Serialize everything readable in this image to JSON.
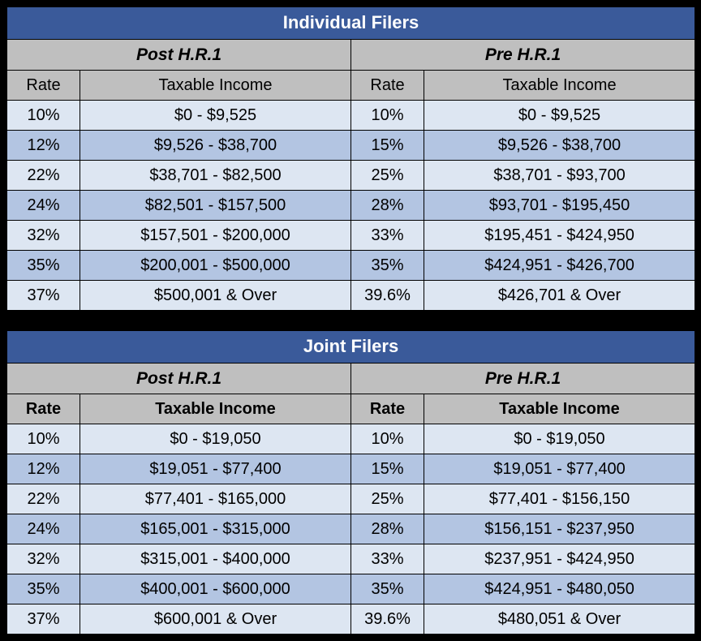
{
  "colors": {
    "header_bg": "#3a5a9a",
    "header_text": "#ffffff",
    "section_bg": "#bfbfbf",
    "row_light": "#dde6f2",
    "row_dark": "#b3c5e2",
    "border": "#000000",
    "page_bg": "#000000"
  },
  "typography": {
    "font_family": "Arial, Helvetica, sans-serif",
    "title_fontsize": 22,
    "body_fontsize": 20
  },
  "tables": [
    {
      "title": "Individual Filers",
      "class_extra": "",
      "sections": [
        {
          "label": "Post H.R.1",
          "col_rate": "Rate",
          "col_income": "Taxable Income"
        },
        {
          "label": "Pre H.R.1",
          "col_rate": "Rate",
          "col_income": "Taxable Income"
        }
      ],
      "rows": [
        {
          "shade": "light",
          "post_rate": "10%",
          "post_income": "$0 - $9,525",
          "pre_rate": "10%",
          "pre_income": "$0 - $9,525"
        },
        {
          "shade": "dark",
          "post_rate": "12%",
          "post_income": "$9,526 - $38,700",
          "pre_rate": "15%",
          "pre_income": "$9,526 - $38,700"
        },
        {
          "shade": "light",
          "post_rate": "22%",
          "post_income": "$38,701 - $82,500",
          "pre_rate": "25%",
          "pre_income": "$38,701 - $93,700"
        },
        {
          "shade": "dark",
          "post_rate": "24%",
          "post_income": "$82,501 - $157,500",
          "pre_rate": "28%",
          "pre_income": "$93,701 - $195,450"
        },
        {
          "shade": "light",
          "post_rate": "32%",
          "post_income": "$157,501 - $200,000",
          "pre_rate": "33%",
          "pre_income": "$195,451 - $424,950"
        },
        {
          "shade": "dark",
          "post_rate": "35%",
          "post_income": "$200,001 - $500,000",
          "pre_rate": "35%",
          "pre_income": "$424,951 - $426,700"
        },
        {
          "shade": "light",
          "post_rate": "37%",
          "post_income": "$500,001 & Over",
          "pre_rate": "39.6%",
          "pre_income": "$426,701 & Over"
        }
      ]
    },
    {
      "title": "Joint Filers",
      "class_extra": "joint",
      "sections": [
        {
          "label": "Post H.R.1",
          "col_rate": "Rate",
          "col_income": "Taxable Income"
        },
        {
          "label": "Pre H.R.1",
          "col_rate": "Rate",
          "col_income": "Taxable Income"
        }
      ],
      "rows": [
        {
          "shade": "light",
          "post_rate": "10%",
          "post_income": "$0 - $19,050",
          "pre_rate": "10%",
          "pre_income": "$0 - $19,050"
        },
        {
          "shade": "dark",
          "post_rate": "12%",
          "post_income": "$19,051 - $77,400",
          "pre_rate": "15%",
          "pre_income": "$19,051 - $77,400"
        },
        {
          "shade": "light",
          "post_rate": "22%",
          "post_income": "$77,401 - $165,000",
          "pre_rate": "25%",
          "pre_income": "$77,401 - $156,150"
        },
        {
          "shade": "dark",
          "post_rate": "24%",
          "post_income": "$165,001 - $315,000",
          "pre_rate": "28%",
          "pre_income": "$156,151 - $237,950"
        },
        {
          "shade": "light",
          "post_rate": "32%",
          "post_income": "$315,001 - $400,000",
          "pre_rate": "33%",
          "pre_income": "$237,951 - $424,950"
        },
        {
          "shade": "dark",
          "post_rate": "35%",
          "post_income": "$400,001 - $600,000",
          "pre_rate": "35%",
          "pre_income": "$424,951 - $480,050"
        },
        {
          "shade": "light",
          "post_rate": "37%",
          "post_income": "$600,001 & Over",
          "pre_rate": "39.6%",
          "pre_income": "$480,051 & Over"
        }
      ]
    }
  ]
}
